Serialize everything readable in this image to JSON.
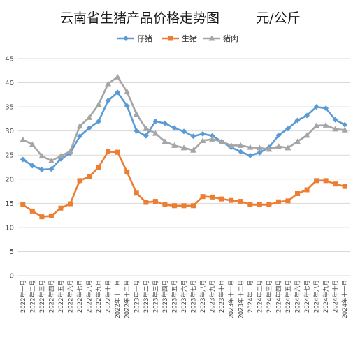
{
  "chart_data": {
    "type": "line",
    "title": "云南省生猪产品价格走势图",
    "unit": "元/公斤",
    "xlabel": "",
    "ylabel": "",
    "ylim": [
      0,
      45
    ],
    "yticks": [
      0,
      5,
      10,
      15,
      20,
      25,
      30,
      35,
      40,
      45
    ],
    "grid": true,
    "legend_position": "top",
    "categories": [
      "2022年一月",
      "2022年二月",
      "2022年三月",
      "2022年四月",
      "2022年五月",
      "2022年六月",
      "2022年七月",
      "2022年八月",
      "2022年九月",
      "2022年十月",
      "2022年十一月",
      "2022年十二月",
      "2023年一月",
      "2023年二月",
      "2023年三月",
      "2023年四月",
      "2023年五月",
      "2023年六月",
      "2023年七月",
      "2023年八月",
      "2023年九月",
      "2023年十月",
      "2023年十一月",
      "2023年十二月",
      "2024年一月",
      "2024年二月",
      "2024年三月",
      "2024年四月",
      "2024年五月",
      "2024年六月",
      "2024年七月",
      "2024年八月",
      "2024年九月",
      "2024年十月",
      "2024年十一月"
    ],
    "series": [
      {
        "name": "仔猪",
        "color": "#5b9bd5",
        "marker": "diamond",
        "values": [
          24.1,
          22.8,
          22.0,
          22.1,
          24.2,
          25.4,
          28.9,
          30.6,
          32.0,
          36.3,
          38.0,
          35.2,
          30.0,
          29.0,
          32.0,
          31.6,
          30.6,
          29.9,
          28.9,
          29.4,
          29.0,
          27.8,
          26.6,
          25.7,
          24.9,
          25.5,
          26.6,
          29.1,
          30.5,
          32.2,
          33.2,
          35.0,
          34.7,
          32.3,
          31.3
        ]
      },
      {
        "name": "生猪",
        "color": "#ed7d31",
        "marker": "square",
        "values": [
          14.7,
          13.4,
          12.2,
          12.4,
          14.0,
          14.9,
          19.7,
          20.5,
          22.5,
          25.7,
          25.6,
          21.5,
          17.1,
          15.2,
          15.4,
          14.7,
          14.5,
          14.5,
          14.5,
          16.4,
          16.3,
          15.9,
          15.6,
          15.4,
          14.7,
          14.7,
          14.7,
          15.3,
          15.5,
          17.0,
          17.8,
          19.7,
          19.7,
          19.0,
          18.5
        ]
      },
      {
        "name": "猪肉",
        "color": "#a5a5a5",
        "marker": "triangle",
        "values": [
          28.2,
          27.2,
          24.8,
          23.8,
          24.8,
          25.8,
          31.0,
          32.8,
          35.5,
          39.8,
          41.2,
          38.1,
          33.5,
          30.5,
          29.5,
          27.8,
          27.0,
          26.5,
          26.0,
          28.0,
          28.3,
          27.8,
          27.0,
          27.0,
          26.6,
          26.5,
          26.2,
          26.8,
          26.5,
          27.8,
          29.1,
          31.1,
          31.2,
          30.4,
          30.2
        ]
      }
    ]
  }
}
